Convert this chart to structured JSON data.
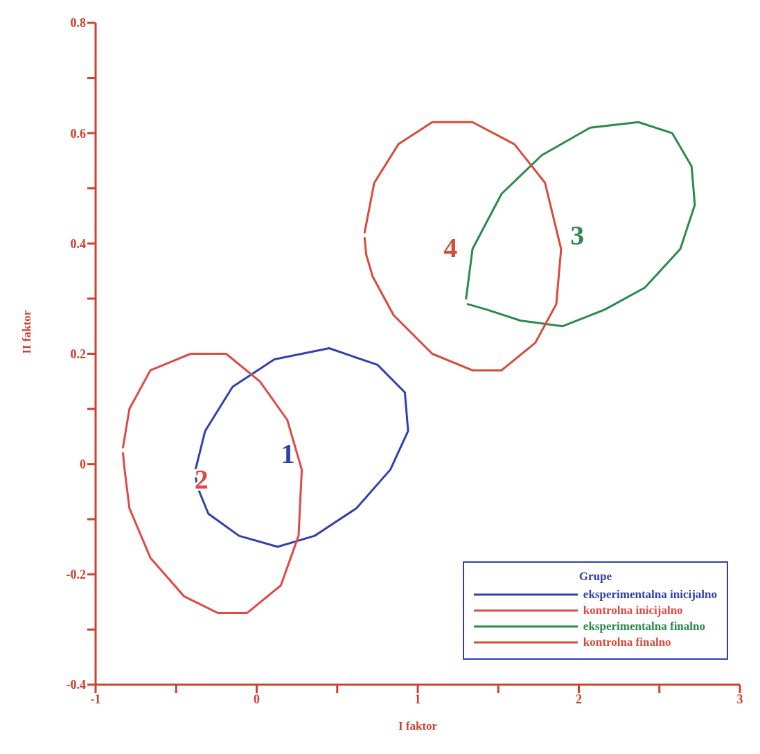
{
  "chart_data": {
    "type": "line",
    "xlabel": "I faktor",
    "ylabel": "II faktor",
    "legend_title": "Grupe",
    "legend": "bottom right",
    "marker": "none",
    "line_style": "solid",
    "grid": false,
    "xlim": [
      -1,
      3
    ],
    "ylim": [
      -0.4,
      0.8
    ],
    "xticks": [
      -1,
      {
        "value": -0.5,
        "label": null
      },
      0,
      {
        "value": 0.5,
        "label": null
      },
      1,
      {
        "value": 1.5,
        "label": null
      },
      2,
      {
        "value": 2.5,
        "label": null
      },
      3
    ],
    "yticks": [
      -0.4,
      {
        "value": -0.3,
        "label": null
      },
      -0.2,
      {
        "value": -0.1,
        "label": null
      },
      0,
      {
        "value": 0.1,
        "label": null
      },
      0.2,
      {
        "value": 0.3,
        "label": null
      },
      0.4,
      {
        "value": 0.5,
        "label": null
      },
      0.6,
      {
        "value": 0.7,
        "label": null
      },
      0.8
    ],
    "series": [
      {
        "name": "eksperimentalna inicijalno",
        "color": "#3040b0",
        "x": [
          -0.38,
          -0.32,
          -0.15,
          0.11,
          0.45,
          0.75,
          0.92,
          0.94,
          0.83,
          0.62,
          0.36,
          0.13,
          -0.11,
          -0.3,
          -0.37,
          -0.38
        ],
        "values": [
          -0.01,
          0.06,
          0.14,
          0.19,
          0.21,
          0.18,
          0.13,
          0.06,
          -0.01,
          -0.08,
          -0.13,
          -0.15,
          -0.13,
          -0.09,
          -0.04,
          -0.02
        ]
      },
      {
        "name": "kontrolna inicijalno",
        "color": "#e24848",
        "x": [
          -0.83,
          -0.79,
          -0.66,
          -0.41,
          -0.19,
          0.02,
          0.19,
          0.28,
          0.26,
          0.15,
          -0.06,
          -0.24,
          -0.45,
          -0.66,
          -0.79,
          -0.82,
          -0.83
        ],
        "values": [
          0.03,
          0.1,
          0.17,
          0.2,
          0.2,
          0.15,
          0.08,
          -0.01,
          -0.13,
          -0.22,
          -0.27,
          -0.27,
          -0.24,
          -0.17,
          -0.08,
          -0.01,
          0.02
        ]
      },
      {
        "name": "eksperimentalna finalno",
        "color": "#2a8a4a",
        "x": [
          1.3,
          1.34,
          1.52,
          1.77,
          2.07,
          2.37,
          2.58,
          2.7,
          2.72,
          2.63,
          2.41,
          2.16,
          1.9,
          1.64,
          1.43,
          1.31
        ],
        "values": [
          0.3,
          0.39,
          0.49,
          0.56,
          0.61,
          0.62,
          0.6,
          0.54,
          0.47,
          0.39,
          0.32,
          0.28,
          0.25,
          0.26,
          0.28,
          0.29
        ]
      },
      {
        "name": "kontrolna finalno",
        "color": "#d84a3a",
        "x": [
          0.67,
          0.73,
          0.88,
          1.09,
          1.34,
          1.6,
          1.79,
          1.89,
          1.86,
          1.73,
          1.52,
          1.34,
          1.09,
          0.85,
          0.72,
          0.68,
          0.67
        ],
        "values": [
          0.42,
          0.51,
          0.58,
          0.62,
          0.62,
          0.58,
          0.51,
          0.39,
          0.29,
          0.22,
          0.17,
          0.17,
          0.2,
          0.27,
          0.34,
          0.38,
          0.41
        ]
      }
    ],
    "annotations": [
      "1",
      "2",
      "3",
      "4"
    ]
  }
}
